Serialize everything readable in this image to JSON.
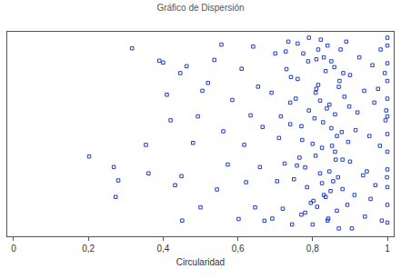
{
  "chart_data": {
    "type": "scatter",
    "title": "Gráfico de Dispersión",
    "x_label": "Circularidad",
    "x": [
      0.202,
      0.268,
      0.28,
      0.273,
      0.317,
      0.354,
      0.361,
      0.39,
      0.4,
      0.41,
      0.42,
      0.432,
      0.446,
      0.449,
      0.451,
      0.463,
      0.48,
      0.493,
      0.5,
      0.505,
      0.52,
      0.537,
      0.544,
      0.556,
      0.561,
      0.573,
      0.585,
      0.602,
      0.61,
      0.617,
      0.622,
      0.634,
      0.641,
      0.646,
      0.654,
      0.659,
      0.666,
      0.671,
      0.7,
      0.72,
      0.74,
      0.76,
      0.78,
      0.8,
      0.82,
      0.84,
      0.86,
      0.88,
      0.71,
      0.73,
      0.75,
      0.77,
      0.79,
      0.81,
      0.83,
      0.85,
      0.87,
      0.89,
      0.9,
      0.92,
      0.94,
      0.96,
      0.98,
      0.69,
      0.735,
      0.765,
      0.795,
      0.825,
      0.855,
      0.885,
      0.915,
      0.945,
      0.975,
      0.705,
      0.745,
      0.775,
      0.805,
      0.835,
      0.865,
      0.895,
      0.925,
      0.955,
      0.985,
      0.715,
      0.755,
      0.785,
      0.815,
      0.845,
      0.875,
      0.905,
      0.935,
      0.965,
      0.995,
      0.725,
      0.808,
      0.812,
      0.842,
      0.858,
      0.802,
      0.822,
      0.838,
      0.852,
      0.868,
      0.878,
      0.882,
      0.893,
      0.808,
      0.828,
      0.848,
      0.862,
      0.872,
      0.898,
      0.788,
      0.772,
      0.758,
      0.742,
      0.728,
      0.912,
      1.0,
      1.0,
      1.0,
      1.0,
      1.0,
      1.0,
      1.0,
      1.0,
      1.0,
      1.0,
      1.0,
      1.0,
      0.999,
      0.997,
      0.993,
      0.938,
      0.952,
      0.968,
      0.982,
      0.692,
      0.82,
      0.84,
      0.86,
      0.8,
      0.78,
      0.88,
      0.76,
      0.74,
      0.9,
      0.83,
      0.81,
      0.85,
      0.87,
      0.79,
      0.77,
      0.845,
      0.825,
      0.815,
      0.865,
      0.835
    ],
    "values": [
      0.386,
      0.332,
      0.264,
      0.18,
      0.936,
      0.445,
      0.3,
      0.873,
      0.864,
      0.7,
      0.57,
      0.24,
      0.81,
      0.286,
      0.06,
      0.845,
      0.455,
      0.59,
      0.127,
      0.72,
      0.76,
      0.877,
      0.218,
      0.955,
      0.514,
      0.345,
      0.673,
      0.068,
      0.832,
      0.445,
      0.255,
      0.595,
      0.945,
      0.127,
      0.741,
      0.332,
      0.536,
      0.059,
      0.91,
      0.12,
      0.55,
      0.78,
      0.33,
      0.04,
      0.67,
      0.95,
      0.41,
      0.22,
      0.48,
      0.83,
      0.27,
      0.09,
      0.62,
      0.88,
      0.19,
      0.53,
      0.74,
      0.97,
      0.36,
      0.61,
      0.08,
      0.85,
      0.44,
      0.71,
      0.97,
      0.38,
      0.15,
      0.43,
      0.26,
      0.69,
      0.52,
      0.31,
      0.73,
      0.26,
      0.04,
      0.91,
      0.58,
      0.82,
      0.11,
      0.46,
      0.89,
      0.17,
      0.06,
      0.59,
      0.68,
      0.23,
      0.75,
      0.31,
      0.93,
      0.02,
      0.29,
      0.66,
      0.57,
      0.35,
      0.39,
      0.13,
      0.07,
      0.84,
      0.16,
      0.98,
      0.63,
      0.44,
      0.28,
      0.51,
      0.81,
      0.14,
      0.71,
      0.56,
      0.21,
      0.37,
      0.77,
      0.64,
      0.87,
      0.47,
      0.34,
      0.79,
      0.92,
      0.19,
      0.05,
      0.14,
      0.23,
      0.32,
      0.41,
      0.5,
      0.59,
      0.68,
      0.77,
      0.86,
      0.95,
      0.99,
      0.28,
      0.62,
      0.81,
      0.72,
      0.49,
      0.24,
      0.93,
      0.07,
      0.3,
      0.06,
      0.6,
      0.45,
      0.1,
      0.37,
      0.96,
      0.66,
      0.8,
      0.89,
      0.73,
      0.87,
      0.02,
      0.99,
      0.54,
      0.65,
      0.25,
      0.93,
      0.49,
      0.18
    ],
    "color": "#1f3fcc",
    "marker": "square-open",
    "xlim": [
      -0.017,
      1.017
    ],
    "xticks": [
      0,
      {
        "value": 0.2,
        "label": "0,2"
      },
      {
        "value": 0.4,
        "label": "0,4"
      },
      {
        "value": 0.6,
        "label": "0,6"
      },
      {
        "value": 0.8,
        "label": "0,8"
      },
      1
    ],
    "ylim": [
      -0.02,
      1.02
    ],
    "grid": false,
    "tick_labels": "x"
  }
}
